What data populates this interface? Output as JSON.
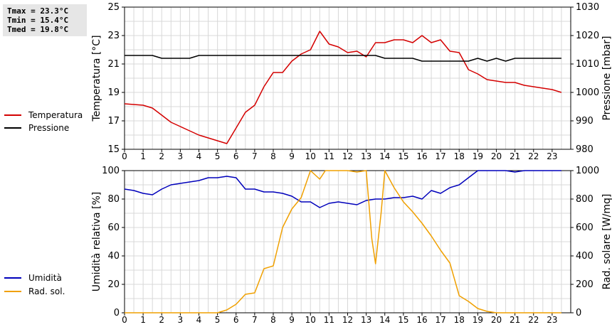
{
  "stats": {
    "tmax": "Tmax = 23.3°C",
    "tmin": "Tmin = 15.4°C",
    "tmed": "Tmed = 19.8°C"
  },
  "legend_top": [
    {
      "label": "Temperatura",
      "color": "#d40000"
    },
    {
      "label": "Pressione",
      "color": "#000000"
    }
  ],
  "legend_bottom": [
    {
      "label": "Umidità",
      "color": "#0000bb"
    },
    {
      "label": "Rad. sol.",
      "color": "#f0a000"
    }
  ],
  "chart_data": [
    {
      "type": "line",
      "ylabel": "Temperatura [°C]",
      "y2label": "Pressione [mbar]",
      "xlim": [
        0,
        24
      ],
      "ylim": [
        15,
        25
      ],
      "y2lim": [
        980,
        1030
      ],
      "xticks": [
        0,
        1,
        2,
        3,
        4,
        5,
        6,
        7,
        8,
        9,
        10,
        11,
        12,
        13,
        14,
        15,
        16,
        17,
        18,
        19,
        20,
        21,
        22,
        23
      ],
      "yticks": [
        15,
        17,
        19,
        21,
        23,
        25
      ],
      "y2ticks": [
        980,
        990,
        1000,
        1010,
        1020,
        1030
      ],
      "grid": true,
      "series": [
        {
          "name": "Temperatura",
          "axis": "left",
          "color": "#d40000",
          "x": [
            0,
            1,
            1.5,
            2,
            2.5,
            3,
            3.5,
            4,
            4.5,
            5,
            5.5,
            6,
            6.5,
            7,
            7.5,
            8,
            8.5,
            9,
            9.5,
            10,
            10.5,
            11,
            11.5,
            12,
            12.5,
            13,
            13.5,
            14,
            14.5,
            15,
            15.5,
            16,
            16.5,
            17,
            17.5,
            18,
            18.5,
            19,
            19.5,
            20,
            20.5,
            21,
            21.5,
            22,
            22.5,
            23,
            23.5
          ],
          "y": [
            18.2,
            18.1,
            17.9,
            17.4,
            16.9,
            16.6,
            16.3,
            16.0,
            15.8,
            15.6,
            15.4,
            16.5,
            17.6,
            18.1,
            19.4,
            20.4,
            20.4,
            21.2,
            21.7,
            22.0,
            23.3,
            22.4,
            22.2,
            21.8,
            21.9,
            21.5,
            22.5,
            22.5,
            22.7,
            22.7,
            22.5,
            23.0,
            22.5,
            22.7,
            21.9,
            21.8,
            20.6,
            20.3,
            19.9,
            19.8,
            19.7,
            19.7,
            19.5,
            19.4,
            19.3,
            19.2,
            19.0
          ]
        },
        {
          "name": "Pressione",
          "axis": "right",
          "color": "#000000",
          "x": [
            0,
            1,
            1.5,
            2,
            2.5,
            3,
            3.5,
            4,
            4.5,
            5,
            6,
            7,
            8,
            9,
            10,
            11,
            12,
            13,
            13.5,
            14,
            15,
            15.5,
            16,
            17,
            18,
            18.5,
            19,
            19.5,
            20,
            20.5,
            21,
            22,
            23,
            23.5
          ],
          "y": [
            1013,
            1013,
            1013,
            1012,
            1012,
            1012,
            1012,
            1013,
            1013,
            1013,
            1013,
            1013,
            1013,
            1013,
            1013,
            1013,
            1013,
            1013,
            1013,
            1012,
            1012,
            1012,
            1011,
            1011,
            1011,
            1011,
            1012,
            1011,
            1012,
            1011,
            1012,
            1012,
            1012,
            1012
          ]
        }
      ]
    },
    {
      "type": "line",
      "ylabel": "Umidità relativa [%]",
      "y2label": "Rad. solare [W/mq]",
      "xlim": [
        0,
        24
      ],
      "ylim": [
        0,
        100
      ],
      "y2lim": [
        0,
        1000
      ],
      "xticks": [
        0,
        1,
        2,
        3,
        4,
        5,
        6,
        7,
        8,
        9,
        10,
        11,
        12,
        13,
        14,
        15,
        16,
        17,
        18,
        19,
        20,
        21,
        22,
        23
      ],
      "yticks": [
        0,
        20,
        40,
        60,
        80,
        100
      ],
      "y2ticks": [
        0,
        200,
        400,
        600,
        800,
        1000
      ],
      "grid": true,
      "series": [
        {
          "name": "Umidità",
          "axis": "left",
          "color": "#0000bb",
          "x": [
            0,
            0.5,
            1,
            1.5,
            2,
            2.5,
            3,
            3.5,
            4,
            4.5,
            5,
            5.5,
            6,
            6.5,
            7,
            7.5,
            8,
            8.5,
            9,
            9.5,
            10,
            10.5,
            11,
            11.5,
            12,
            12.5,
            13,
            13.5,
            14,
            14.5,
            15,
            15.5,
            16,
            16.5,
            17,
            17.5,
            18,
            18.5,
            19,
            19.5,
            20,
            20.5,
            21,
            21.5,
            22,
            22.5,
            23,
            23.5
          ],
          "y": [
            87,
            86,
            84,
            83,
            87,
            90,
            91,
            92,
            93,
            95,
            95,
            96,
            95,
            87,
            87,
            85,
            85,
            84,
            82,
            78,
            78,
            74,
            77,
            78,
            77,
            76,
            79,
            80,
            80,
            81,
            81,
            82,
            80,
            86,
            84,
            88,
            90,
            95,
            100,
            100,
            100,
            100,
            99,
            100,
            100,
            100,
            100,
            100
          ]
        },
        {
          "name": "Rad. sol.",
          "axis": "right",
          "color": "#f0a000",
          "x": [
            0,
            1,
            2,
            3,
            4,
            5,
            5.5,
            6,
            6.5,
            7,
            7.5,
            8,
            8.5,
            9,
            9.5,
            10,
            10.5,
            10.8,
            11,
            11.5,
            12,
            12.5,
            13,
            13.3,
            13.5,
            13.8,
            14,
            14.5,
            15,
            15.5,
            16,
            16.5,
            17,
            17.5,
            18,
            18.5,
            19,
            19.5,
            20,
            21,
            22,
            23,
            23.5
          ],
          "y": [
            0,
            0,
            0,
            0,
            0,
            0,
            20,
            60,
            130,
            140,
            310,
            330,
            600,
            730,
            810,
            1000,
            940,
            1000,
            1000,
            1000,
            1000,
            990,
            1000,
            520,
            345,
            700,
            1000,
            880,
            780,
            710,
            630,
            540,
            440,
            350,
            120,
            80,
            30,
            10,
            0,
            0,
            0,
            0,
            0
          ]
        }
      ]
    }
  ]
}
